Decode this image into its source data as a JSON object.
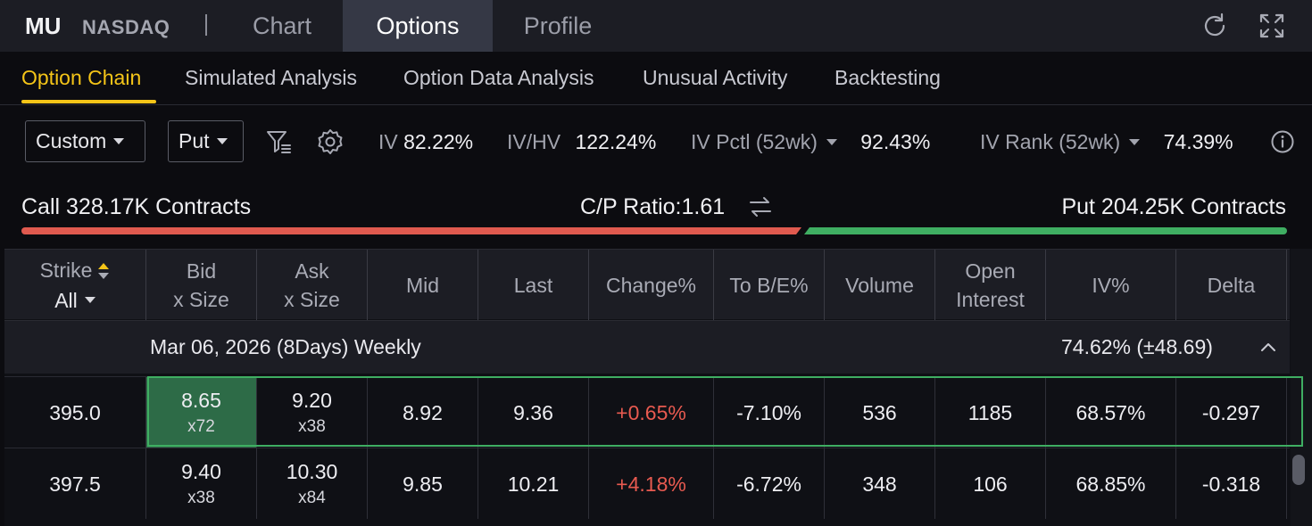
{
  "header": {
    "ticker": "MU",
    "exchange": "NASDAQ",
    "tabs": [
      {
        "label": "Chart",
        "active": false
      },
      {
        "label": "Options",
        "active": true
      },
      {
        "label": "Profile",
        "active": false
      }
    ],
    "icons": [
      "refresh-icon",
      "fullscreen-icon"
    ]
  },
  "subtabs": [
    {
      "label": "Option Chain",
      "active": true
    },
    {
      "label": "Simulated Analysis",
      "active": false
    },
    {
      "label": "Option Data Analysis",
      "active": false
    },
    {
      "label": "Unusual Activity",
      "active": false
    },
    {
      "label": "Backtesting",
      "active": false
    }
  ],
  "toolbar": {
    "mode_select": "Custom",
    "type_select": "Put",
    "icons": [
      "filter-icon",
      "settings-icon",
      "info-icon"
    ],
    "iv_label": "IV",
    "iv_value": "82.22%",
    "ivhv_label": "IV/HV",
    "ivhv_value": "122.24%",
    "ivpctl_label": "IV Pctl (52wk)",
    "ivpctl_value": "92.43%",
    "ivrank_label": "IV Rank (52wk)",
    "ivrank_value": "74.39%"
  },
  "ratio": {
    "call_text": "Call 328.17K Contracts",
    "cp_text": "C/P Ratio:1.61",
    "put_text": "Put 204.25K Contracts",
    "call_share": 0.6164,
    "call_color": "#e05a4f",
    "put_color": "#3fae62"
  },
  "table": {
    "headers": {
      "strike": "Strike",
      "strike_filter": "All",
      "bid": [
        "Bid",
        "x Size"
      ],
      "ask": [
        "Ask",
        "x Size"
      ],
      "mid": "Mid",
      "last": "Last",
      "change": "Change%",
      "tobe": "To B/E%",
      "volume": "Volume",
      "oi": [
        "Open",
        "Interest"
      ],
      "iv": "IV%",
      "delta": "Delta"
    },
    "group": {
      "title": "Mar 06, 2026 (8Days) Weekly",
      "iv": "74.62%  (±48.69)"
    },
    "rows": [
      {
        "strike": "395.0",
        "bid": "8.65",
        "bid_size": "x72",
        "ask": "9.20",
        "ask_size": "x38",
        "mid": "8.92",
        "last": "9.36",
        "change": "+0.65%",
        "tobe": "-7.10%",
        "volume": "536",
        "oi": "1185",
        "iv": "68.57%",
        "delta": "-0.297"
      },
      {
        "strike": "397.5",
        "bid": "9.40",
        "bid_size": "x38",
        "ask": "10.30",
        "ask_size": "x84",
        "mid": "9.85",
        "last": "10.21",
        "change": "+4.18%",
        "tobe": "-6.72%",
        "volume": "348",
        "oi": "106",
        "iv": "68.85%",
        "delta": "-0.318"
      }
    ]
  }
}
